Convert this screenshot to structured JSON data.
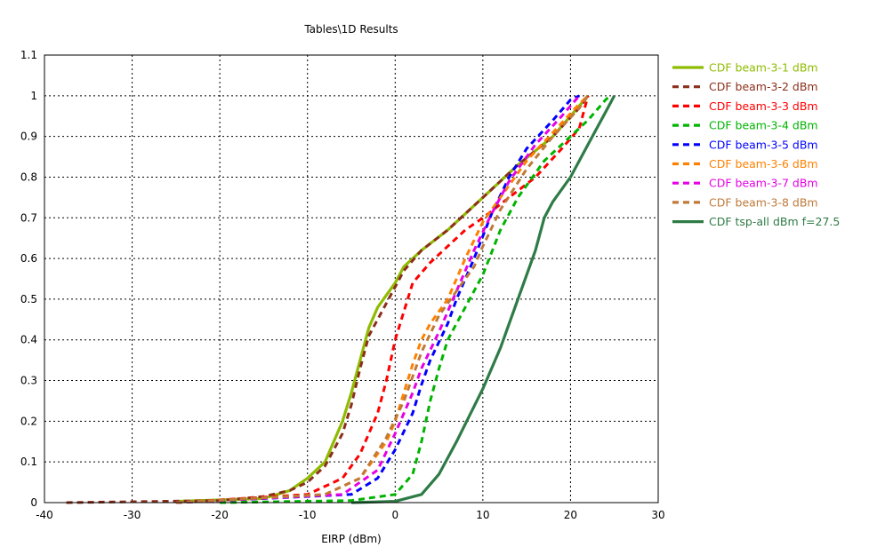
{
  "chart_data": {
    "type": "line",
    "title": "Tables\\1D Results",
    "xlabel": "EIRP (dBm)",
    "ylabel": "",
    "xlim": [
      -40,
      30
    ],
    "ylim": [
      0,
      1.1
    ],
    "xticks": [
      "-40",
      "-30",
      "-20",
      "-10",
      "0",
      "10",
      "20",
      "30"
    ],
    "xtick_values": [
      -40,
      -30,
      -20,
      -10,
      0,
      10,
      20,
      30
    ],
    "yticks": [
      "0",
      "0.1",
      "0.2",
      "0.3",
      "0.4",
      "0.5",
      "0.6",
      "0.7",
      "0.8",
      "0.9",
      "1",
      "1.1"
    ],
    "ytick_values": [
      0,
      0.1,
      0.2,
      0.3,
      0.4,
      0.5,
      0.6,
      0.7,
      0.8,
      0.9,
      1,
      1.1
    ],
    "grid": true,
    "legend_position": "right",
    "series": [
      {
        "name": "CDF beam-3-1 dBm",
        "color": "#8fbc00",
        "style": "solid",
        "x": [
          -25,
          -15,
          -12,
          -10,
          -8,
          -6,
          -5,
          -4,
          -3,
          -2,
          0,
          1,
          3,
          6,
          10,
          14,
          18,
          22
        ],
        "y": [
          0.003,
          0.01,
          0.03,
          0.06,
          0.1,
          0.2,
          0.27,
          0.35,
          0.43,
          0.48,
          0.54,
          0.58,
          0.62,
          0.67,
          0.75,
          0.83,
          0.9,
          1
        ]
      },
      {
        "name": "CDF beam-3-2 dBm",
        "color": "#8b2f1c",
        "style": "dashed",
        "x": [
          -37.5,
          -20,
          -15,
          -12,
          -10,
          -8,
          -6,
          -5,
          -4,
          -3,
          -1,
          1,
          3,
          6,
          10,
          14,
          18,
          21,
          22
        ],
        "y": [
          0,
          0.005,
          0.015,
          0.03,
          0.05,
          0.09,
          0.17,
          0.24,
          0.33,
          0.41,
          0.49,
          0.57,
          0.62,
          0.67,
          0.75,
          0.83,
          0.9,
          0.97,
          1
        ]
      },
      {
        "name": "CDF beam-3-3 dBm",
        "color": "#ff0000",
        "style": "dashed",
        "x": [
          -25,
          -10,
          -6,
          -4,
          -2,
          -1,
          0,
          1,
          2,
          4,
          6,
          8,
          10,
          13,
          16,
          19,
          21,
          22
        ],
        "y": [
          0,
          0.02,
          0.06,
          0.12,
          0.22,
          0.3,
          0.4,
          0.47,
          0.54,
          0.59,
          0.63,
          0.67,
          0.7,
          0.75,
          0.8,
          0.87,
          0.92,
          1
        ]
      },
      {
        "name": "CDF beam-3-4 dBm",
        "color": "#00b400",
        "style": "dashed",
        "x": [
          -20,
          -5,
          0,
          2,
          3,
          4,
          5,
          6,
          8,
          10,
          12,
          14,
          17,
          20,
          22,
          24,
          24.5
        ],
        "y": [
          0,
          0.005,
          0.02,
          0.07,
          0.15,
          0.25,
          0.33,
          0.4,
          0.48,
          0.56,
          0.67,
          0.75,
          0.84,
          0.9,
          0.94,
          0.99,
          1
        ]
      },
      {
        "name": "CDF beam-3-5 dBm",
        "color": "#0000ff",
        "style": "dashed",
        "x": [
          -25,
          -5,
          -2,
          0,
          2,
          3,
          4,
          6,
          7,
          9,
          11,
          13,
          15,
          18,
          20,
          21
        ],
        "y": [
          0,
          0.02,
          0.06,
          0.13,
          0.22,
          0.29,
          0.35,
          0.44,
          0.5,
          0.6,
          0.71,
          0.8,
          0.87,
          0.94,
          0.99,
          1
        ]
      },
      {
        "name": "CDF beam-3-6 dBm",
        "color": "#ff8000",
        "style": "dashed",
        "x": [
          -25,
          -8,
          -4,
          -1,
          0,
          1,
          2,
          3,
          4,
          6,
          8,
          10,
          12,
          15,
          18,
          21,
          22
        ],
        "y": [
          0,
          0.02,
          0.06,
          0.15,
          0.2,
          0.27,
          0.34,
          0.4,
          0.44,
          0.5,
          0.6,
          0.69,
          0.75,
          0.84,
          0.91,
          0.98,
          1
        ]
      },
      {
        "name": "CDF beam-3-7 dBm",
        "color": "#e600e6",
        "style": "dashed",
        "x": [
          -25,
          -6,
          -2,
          0,
          2,
          3,
          5,
          7,
          9,
          11,
          13,
          16,
          19,
          21
        ],
        "y": [
          0,
          0.02,
          0.08,
          0.17,
          0.27,
          0.33,
          0.42,
          0.52,
          0.62,
          0.71,
          0.79,
          0.88,
          0.95,
          1
        ]
      },
      {
        "name": "CDF beam-3-8 dBm",
        "color": "#bf7a3a",
        "style": "dashed",
        "x": [
          -25,
          -8,
          -4,
          -1,
          1,
          3,
          5,
          7,
          9,
          10,
          12,
          15,
          18,
          21,
          22
        ],
        "y": [
          0,
          0.02,
          0.06,
          0.16,
          0.25,
          0.37,
          0.46,
          0.52,
          0.58,
          0.63,
          0.72,
          0.82,
          0.9,
          0.97,
          1
        ]
      },
      {
        "name": "CDF tsp-all dBm f=27.5",
        "color": "#2e7b46",
        "style": "solid",
        "x": [
          -5,
          0,
          3,
          5,
          7,
          10,
          12,
          14,
          16,
          17,
          18,
          20,
          22,
          24,
          25
        ],
        "y": [
          0,
          0.003,
          0.02,
          0.07,
          0.15,
          0.28,
          0.38,
          0.5,
          0.62,
          0.7,
          0.74,
          0.8,
          0.88,
          0.96,
          1
        ]
      }
    ]
  }
}
